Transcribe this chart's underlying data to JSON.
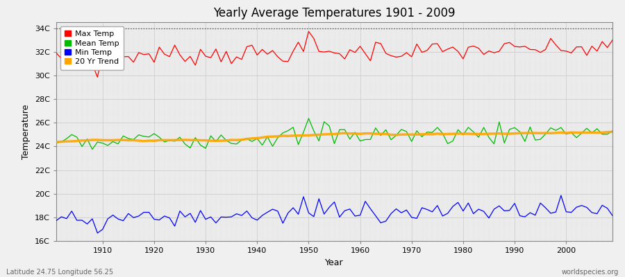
{
  "title": "Yearly Average Temperatures 1901 - 2009",
  "xlabel": "Year",
  "ylabel": "Temperature",
  "subtitle_left": "Latitude 24.75 Longitude 56.25",
  "subtitle_right": "worldspecies.org",
  "fig_bg_color": "#f0f0f0",
  "plot_bg_color": "#ebebeb",
  "ylim": [
    16,
    34.5
  ],
  "xlim": [
    1901,
    2009
  ],
  "yticks": [
    16,
    18,
    20,
    22,
    24,
    26,
    28,
    30,
    32,
    34
  ],
  "ytick_labels": [
    "16C",
    "18C",
    "20C",
    "22C",
    "24C",
    "26C",
    "28C",
    "30C",
    "32C",
    "34C"
  ],
  "xticks": [
    1910,
    1920,
    1930,
    1940,
    1950,
    1960,
    1970,
    1980,
    1990,
    2000
  ],
  "max_temp_color": "#ff0000",
  "mean_temp_color": "#00bb00",
  "min_temp_color": "#0000ff",
  "trend_color": "#ffa500",
  "dotted_line_y": 34,
  "legend_labels": [
    "Max Temp",
    "Mean Temp",
    "Min Temp",
    "20 Yr Trend"
  ],
  "grid_color": "#cccccc",
  "minor_grid_color": "#dddddd"
}
